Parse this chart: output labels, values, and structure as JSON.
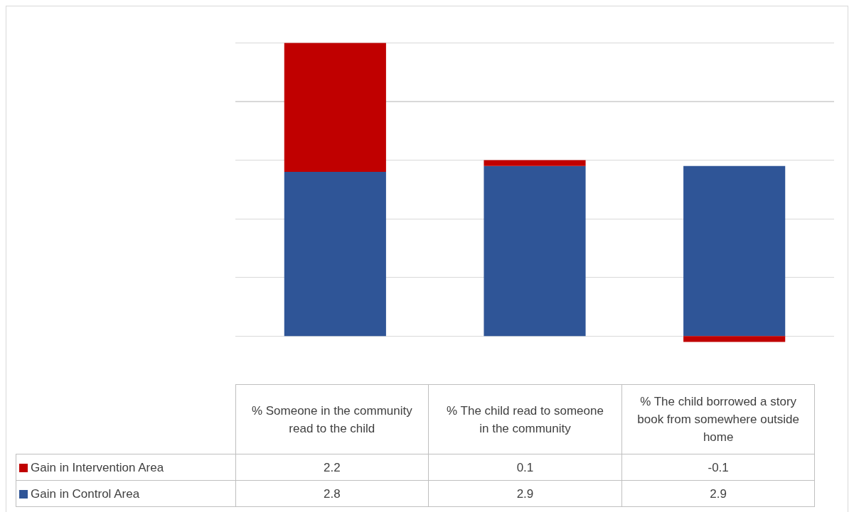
{
  "chart_data": {
    "type": "bar",
    "stacked": true,
    "categories": [
      "% Someone in the community read to the child",
      "% The child read to someone in the community",
      "% The child borrowed a story book from somewhere outside home"
    ],
    "series": [
      {
        "name": "Gain in Control Area",
        "color": "#2f5597",
        "values": [
          2.8,
          2.9,
          2.9
        ]
      },
      {
        "name": "Gain in Intervention Area",
        "color": "#c00000",
        "values": [
          2.2,
          0.1,
          -0.1
        ]
      }
    ],
    "grid": "y",
    "tick_labels": false,
    "data_labels": true,
    "legend": "bottom"
  }
}
